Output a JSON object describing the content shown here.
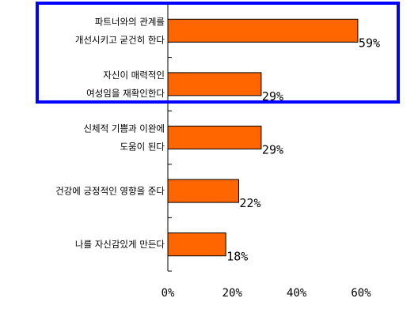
{
  "chart_data": {
    "type": "bar",
    "orientation": "horizontal",
    "categories": [
      [
        "파트너와의 관계를",
        "개선시키고 굳건히 한다"
      ],
      [
        "자신이 매력적인",
        "여성임을 재확인한다"
      ],
      [
        "신체적 기쁨과 이완에",
        "도움이 된다"
      ],
      [
        "건강에 긍정적인 영향을 준다"
      ],
      [
        "나를 자신감있게 만든다"
      ]
    ],
    "values": [
      59,
      29,
      29,
      22,
      18
    ],
    "data_labels": [
      "59%",
      "29%",
      "29%",
      "22%",
      "18%"
    ],
    "xticks": [
      "0%",
      "20%",
      "40%",
      "60%"
    ],
    "xlim": [
      0,
      60
    ],
    "bar_color": "#ff6600",
    "highlight": {
      "categories": [
        0,
        1
      ],
      "color": "#0000ff"
    },
    "title": "",
    "xlabel": "",
    "ylabel": ""
  }
}
